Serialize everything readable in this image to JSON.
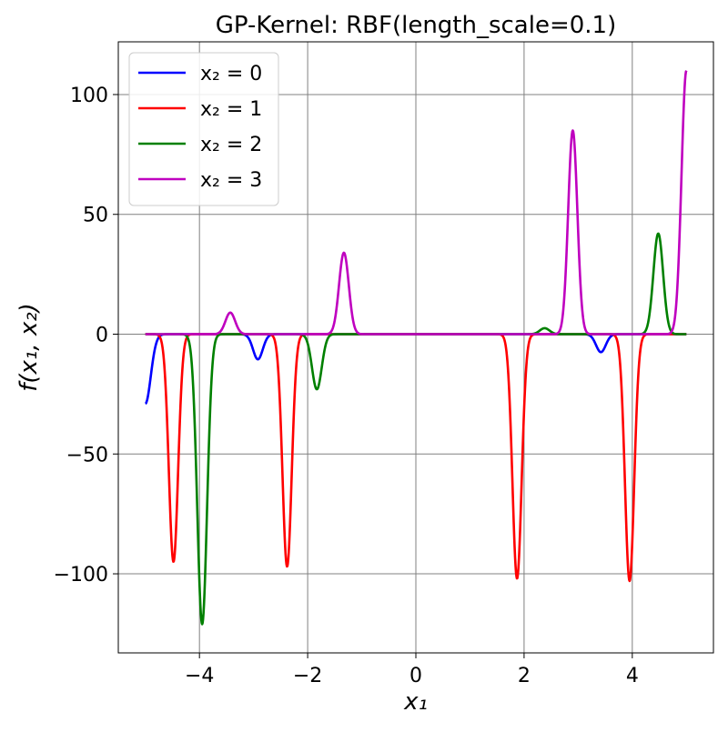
{
  "chart_data": {
    "type": "line",
    "title": "GP-Kernel: RBF(length_scale=0.1)",
    "xlabel": "x₁",
    "ylabel": "f(x₁, x₂)",
    "xlim": [
      -5.5,
      5.5
    ],
    "ylim": [
      -133,
      122
    ],
    "xticks": [
      {
        "value": -4,
        "label": "−4"
      },
      {
        "value": -2,
        "label": "−2"
      },
      {
        "value": 0,
        "label": "0"
      },
      {
        "value": 2,
        "label": "2"
      },
      {
        "value": 4,
        "label": "4"
      }
    ],
    "yticks": [
      {
        "value": 100,
        "label": "100"
      },
      {
        "value": 50,
        "label": "50"
      },
      {
        "value": 0,
        "label": "0"
      },
      {
        "value": -50,
        "label": "−50"
      },
      {
        "value": -100,
        "label": "−100"
      }
    ],
    "grid": true,
    "legend_position": "top-left",
    "x_range": [
      -5,
      5
    ],
    "series": [
      {
        "name": "x₂ = 0",
        "color": "#0000ff",
        "peaks": [
          {
            "center": -5.0,
            "height": -29,
            "width": 0.1
          },
          {
            "center": -2.92,
            "height": -10.5,
            "width": 0.09
          },
          {
            "center": 3.42,
            "height": -7.5,
            "width": 0.09
          }
        ]
      },
      {
        "name": "x₂ = 1",
        "color": "#ff0000",
        "peaks": [
          {
            "center": -4.48,
            "height": -95,
            "width": 0.085
          },
          {
            "center": -2.38,
            "height": -97,
            "width": 0.085
          },
          {
            "center": 1.87,
            "height": -102,
            "width": 0.085
          },
          {
            "center": 3.95,
            "height": -103,
            "width": 0.085
          }
        ]
      },
      {
        "name": "x₂ = 2",
        "color": "#008000",
        "peaks": [
          {
            "center": -3.95,
            "height": -121,
            "width": 0.09
          },
          {
            "center": -1.83,
            "height": -23,
            "width": 0.09
          },
          {
            "center": 2.38,
            "height": 2.5,
            "width": 0.09
          },
          {
            "center": 4.48,
            "height": 42,
            "width": 0.09
          }
        ]
      },
      {
        "name": "x₂ = 3",
        "color": "#bf00bf",
        "peaks": [
          {
            "center": -3.43,
            "height": 9,
            "width": 0.09
          },
          {
            "center": -1.33,
            "height": 34,
            "width": 0.09
          },
          {
            "center": 2.9,
            "height": 85,
            "width": 0.085
          },
          {
            "center": 5.0,
            "height": 110,
            "width": 0.09
          }
        ]
      }
    ]
  }
}
